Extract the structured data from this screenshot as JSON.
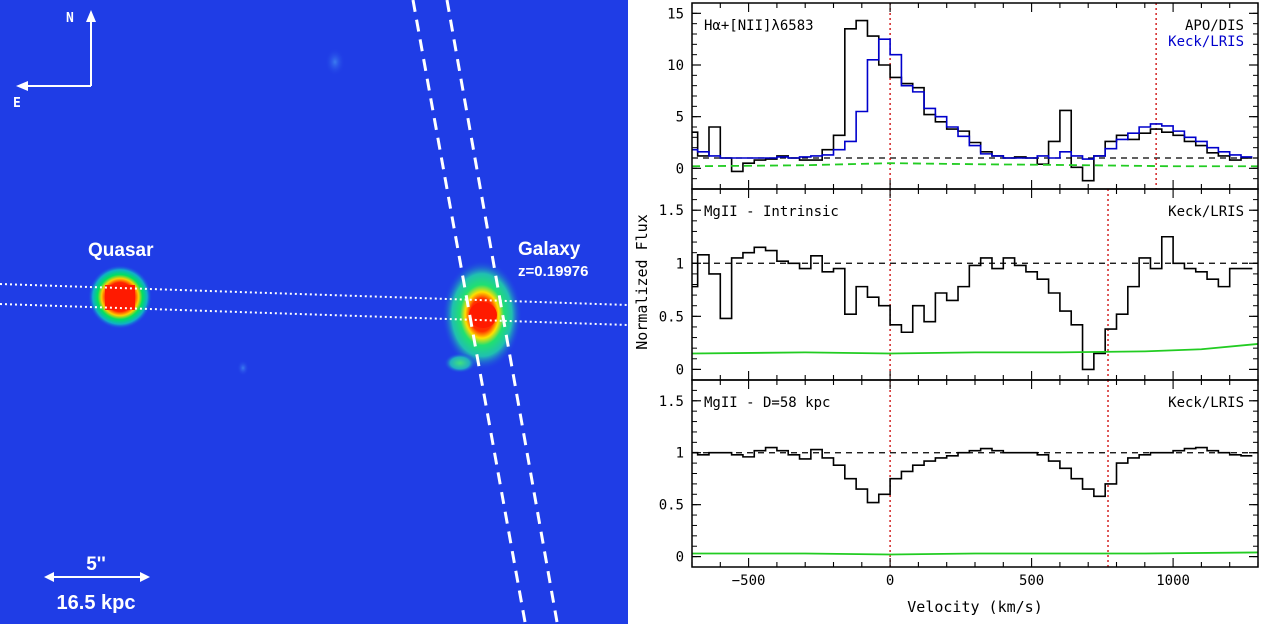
{
  "image": {
    "compass": {
      "north": "N",
      "east": "E"
    },
    "objects": [
      {
        "label": "Quasar",
        "sublabel": ""
      },
      {
        "label": "Galaxy",
        "sublabel": "z=0.19976"
      }
    ],
    "scale_bar": {
      "angular": "5''",
      "physical": "16.5 kpc"
    },
    "colors": {
      "background": "#1f3de6",
      "core": "#ff1a00",
      "halo": "#00e060",
      "slit": "#ffffff"
    }
  },
  "chart_data": [
    {
      "type": "line",
      "panel_label": "Hα+[NII]λ6583",
      "instrument_labels": [
        {
          "text": "APO/DIS",
          "color": "#000000"
        },
        {
          "text": "Keck/LRIS",
          "color": "#0000cc"
        }
      ],
      "xlim": [
        -700,
        1300
      ],
      "ylim": [
        -2,
        16
      ],
      "yticks": [
        0,
        5,
        10,
        15
      ],
      "reference_lines": [
        {
          "kind": "dashed",
          "y": 1,
          "color": "#000000"
        },
        {
          "kind": "dotted-vertical",
          "x": 0,
          "color": "#cc0000"
        },
        {
          "kind": "dotted-vertical",
          "x": 940,
          "color": "#cc0000"
        }
      ],
      "series": [
        {
          "name": "APO/DIS",
          "color": "#000000",
          "style": "step",
          "x": [
            -700,
            -660,
            -620,
            -580,
            -540,
            -500,
            -460,
            -420,
            -380,
            -340,
            -300,
            -260,
            -220,
            -180,
            -140,
            -100,
            -60,
            -20,
            20,
            60,
            100,
            140,
            180,
            220,
            260,
            300,
            340,
            380,
            420,
            460,
            500,
            540,
            580,
            620,
            660,
            700,
            740,
            780,
            820,
            860,
            900,
            940,
            980,
            1020,
            1060,
            1100,
            1140,
            1180,
            1220,
            1260
          ],
          "y": [
            3.5,
            1.2,
            4.0,
            1.0,
            -0.3,
            0.5,
            0.8,
            0.9,
            1.2,
            1.0,
            0.8,
            0.8,
            1.8,
            3.2,
            13.5,
            14.3,
            12.8,
            10.0,
            8.8,
            8.2,
            7.8,
            5.2,
            4.5,
            3.8,
            3.6,
            2.5,
            1.6,
            1.2,
            1.0,
            1.1,
            1.0,
            0.4,
            2.6,
            5.6,
            0.1,
            -1.2,
            1.2,
            2.6,
            3.2,
            2.8,
            3.4,
            3.8,
            3.5,
            3.2,
            2.6,
            2.2,
            1.5,
            1.2,
            0.8,
            1.0
          ]
        },
        {
          "name": "Keck/LRIS",
          "color": "#0000cc",
          "style": "step",
          "x": [
            -700,
            -660,
            -620,
            -580,
            -540,
            -500,
            -460,
            -420,
            -380,
            -340,
            -300,
            -260,
            -220,
            -180,
            -140,
            -100,
            -60,
            -20,
            20,
            60,
            100,
            140,
            180,
            220,
            260,
            300,
            340,
            380,
            420,
            460,
            500,
            540,
            580,
            620,
            660,
            700,
            740,
            780,
            820,
            860,
            900,
            940,
            980,
            1020,
            1060,
            1100,
            1140,
            1180,
            1220,
            1260
          ],
          "y": [
            1.8,
            1.6,
            1.2,
            1.0,
            1.0,
            1.0,
            1.0,
            1.0,
            1.1,
            1.0,
            1.1,
            1.2,
            1.3,
            1.8,
            2.6,
            5.5,
            10.5,
            12.5,
            11.0,
            8.0,
            7.4,
            5.8,
            5.0,
            4.0,
            3.1,
            2.2,
            1.4,
            1.2,
            1.0,
            1.0,
            1.0,
            1.2,
            1.0,
            1.6,
            1.2,
            0.9,
            1.2,
            1.9,
            2.8,
            3.4,
            4.0,
            4.3,
            4.1,
            3.6,
            3.0,
            2.6,
            2.0,
            1.6,
            1.3,
            1.1
          ]
        },
        {
          "name": "APO/DIS error",
          "color": "#22cc22",
          "style": "dashed",
          "x": [
            -700,
            -300,
            0,
            300,
            700,
            1000,
            1300
          ],
          "y": [
            0.2,
            0.3,
            0.5,
            0.4,
            0.3,
            0.2,
            0.2
          ]
        }
      ]
    },
    {
      "type": "line",
      "panel_label": "MgII - Intrinsic",
      "instrument_labels": [
        {
          "text": "Keck/LRIS",
          "color": "#000000"
        }
      ],
      "xlim": [
        -700,
        1300
      ],
      "ylim": [
        -0.1,
        1.7
      ],
      "yticks": [
        0,
        0.5,
        1,
        1.5
      ],
      "yticklabels": [
        "0",
        "0.5",
        "1",
        "1.5"
      ],
      "reference_lines": [
        {
          "kind": "dashed",
          "y": 1,
          "color": "#000000"
        },
        {
          "kind": "dotted-vertical",
          "x": 0,
          "color": "#cc0000"
        },
        {
          "kind": "dotted-vertical",
          "x": 770,
          "color": "#cc0000"
        }
      ],
      "series": [
        {
          "name": "MgII intrinsic flux",
          "color": "#000000",
          "style": "step",
          "x": [
            -700,
            -660,
            -620,
            -580,
            -540,
            -500,
            -460,
            -420,
            -380,
            -340,
            -300,
            -260,
            -220,
            -180,
            -140,
            -100,
            -60,
            -20,
            20,
            60,
            100,
            140,
            180,
            220,
            260,
            300,
            340,
            380,
            420,
            460,
            500,
            540,
            580,
            620,
            660,
            700,
            740,
            780,
            820,
            860,
            900,
            940,
            980,
            1020,
            1060,
            1100,
            1140,
            1180,
            1220,
            1260
          ],
          "y": [
            0.78,
            1.08,
            0.9,
            0.48,
            1.05,
            1.1,
            1.15,
            1.12,
            1.02,
            1.0,
            0.95,
            1.07,
            0.92,
            0.95,
            0.52,
            0.78,
            0.68,
            0.6,
            0.42,
            0.35,
            0.6,
            0.45,
            0.72,
            0.65,
            0.78,
            0.98,
            1.05,
            0.95,
            1.05,
            0.98,
            0.92,
            0.85,
            0.72,
            0.55,
            0.42,
            0.0,
            0.15,
            0.38,
            0.52,
            0.78,
            1.05,
            0.95,
            1.25,
            1.0,
            0.95,
            0.92,
            0.85,
            0.78,
            0.95,
            0.95
          ]
        },
        {
          "name": "MgII intrinsic error",
          "color": "#22cc22",
          "style": "solid",
          "x": [
            -700,
            -300,
            0,
            300,
            600,
            900,
            1100,
            1300
          ],
          "y": [
            0.15,
            0.16,
            0.15,
            0.16,
            0.16,
            0.17,
            0.19,
            0.24
          ]
        }
      ]
    },
    {
      "type": "line",
      "panel_label": "MgII - D=58 kpc",
      "instrument_labels": [
        {
          "text": "Keck/LRIS",
          "color": "#000000"
        }
      ],
      "xlim": [
        -700,
        1300
      ],
      "ylim": [
        -0.1,
        1.7
      ],
      "yticks": [
        0,
        0.5,
        1,
        1.5
      ],
      "yticklabels": [
        "0",
        "0.5",
        "1",
        "1.5"
      ],
      "xticks": [
        -500,
        0,
        500,
        1000
      ],
      "xticklabels": [
        "−500",
        "0",
        "500",
        "1000"
      ],
      "xlabel": "Velocity (km/s)",
      "reference_lines": [
        {
          "kind": "dashed",
          "y": 1,
          "color": "#000000"
        },
        {
          "kind": "dotted-vertical",
          "x": 0,
          "color": "#cc0000"
        },
        {
          "kind": "dotted-vertical",
          "x": 770,
          "color": "#cc0000"
        }
      ],
      "series": [
        {
          "name": "MgII D=58 kpc flux",
          "color": "#000000",
          "style": "step",
          "x": [
            -700,
            -660,
            -620,
            -580,
            -540,
            -500,
            -460,
            -420,
            -380,
            -340,
            -300,
            -260,
            -220,
            -180,
            -140,
            -100,
            -60,
            -20,
            20,
            60,
            100,
            140,
            180,
            220,
            260,
            300,
            340,
            380,
            420,
            460,
            500,
            540,
            580,
            620,
            660,
            700,
            740,
            780,
            820,
            860,
            900,
            940,
            980,
            1020,
            1060,
            1100,
            1140,
            1180,
            1220,
            1260
          ],
          "y": [
            1.0,
            0.98,
            1.0,
            1.0,
            0.98,
            0.96,
            1.02,
            1.05,
            1.02,
            0.98,
            0.94,
            1.03,
            0.95,
            0.88,
            0.75,
            0.65,
            0.52,
            0.6,
            0.75,
            0.82,
            0.88,
            0.92,
            0.95,
            0.97,
            1.0,
            1.02,
            1.04,
            1.02,
            1.0,
            1.0,
            1.0,
            0.98,
            0.92,
            0.85,
            0.75,
            0.65,
            0.58,
            0.7,
            0.9,
            0.95,
            0.98,
            1.0,
            1.0,
            1.02,
            1.04,
            1.05,
            1.02,
            1.0,
            0.98,
            0.97
          ]
        },
        {
          "name": "MgII D=58 kpc error",
          "color": "#22cc22",
          "style": "solid",
          "x": [
            -700,
            -300,
            0,
            300,
            600,
            900,
            1300
          ],
          "y": [
            0.03,
            0.03,
            0.02,
            0.03,
            0.03,
            0.03,
            0.04
          ]
        }
      ]
    }
  ],
  "shared_ylabel": "Normalized Flux"
}
